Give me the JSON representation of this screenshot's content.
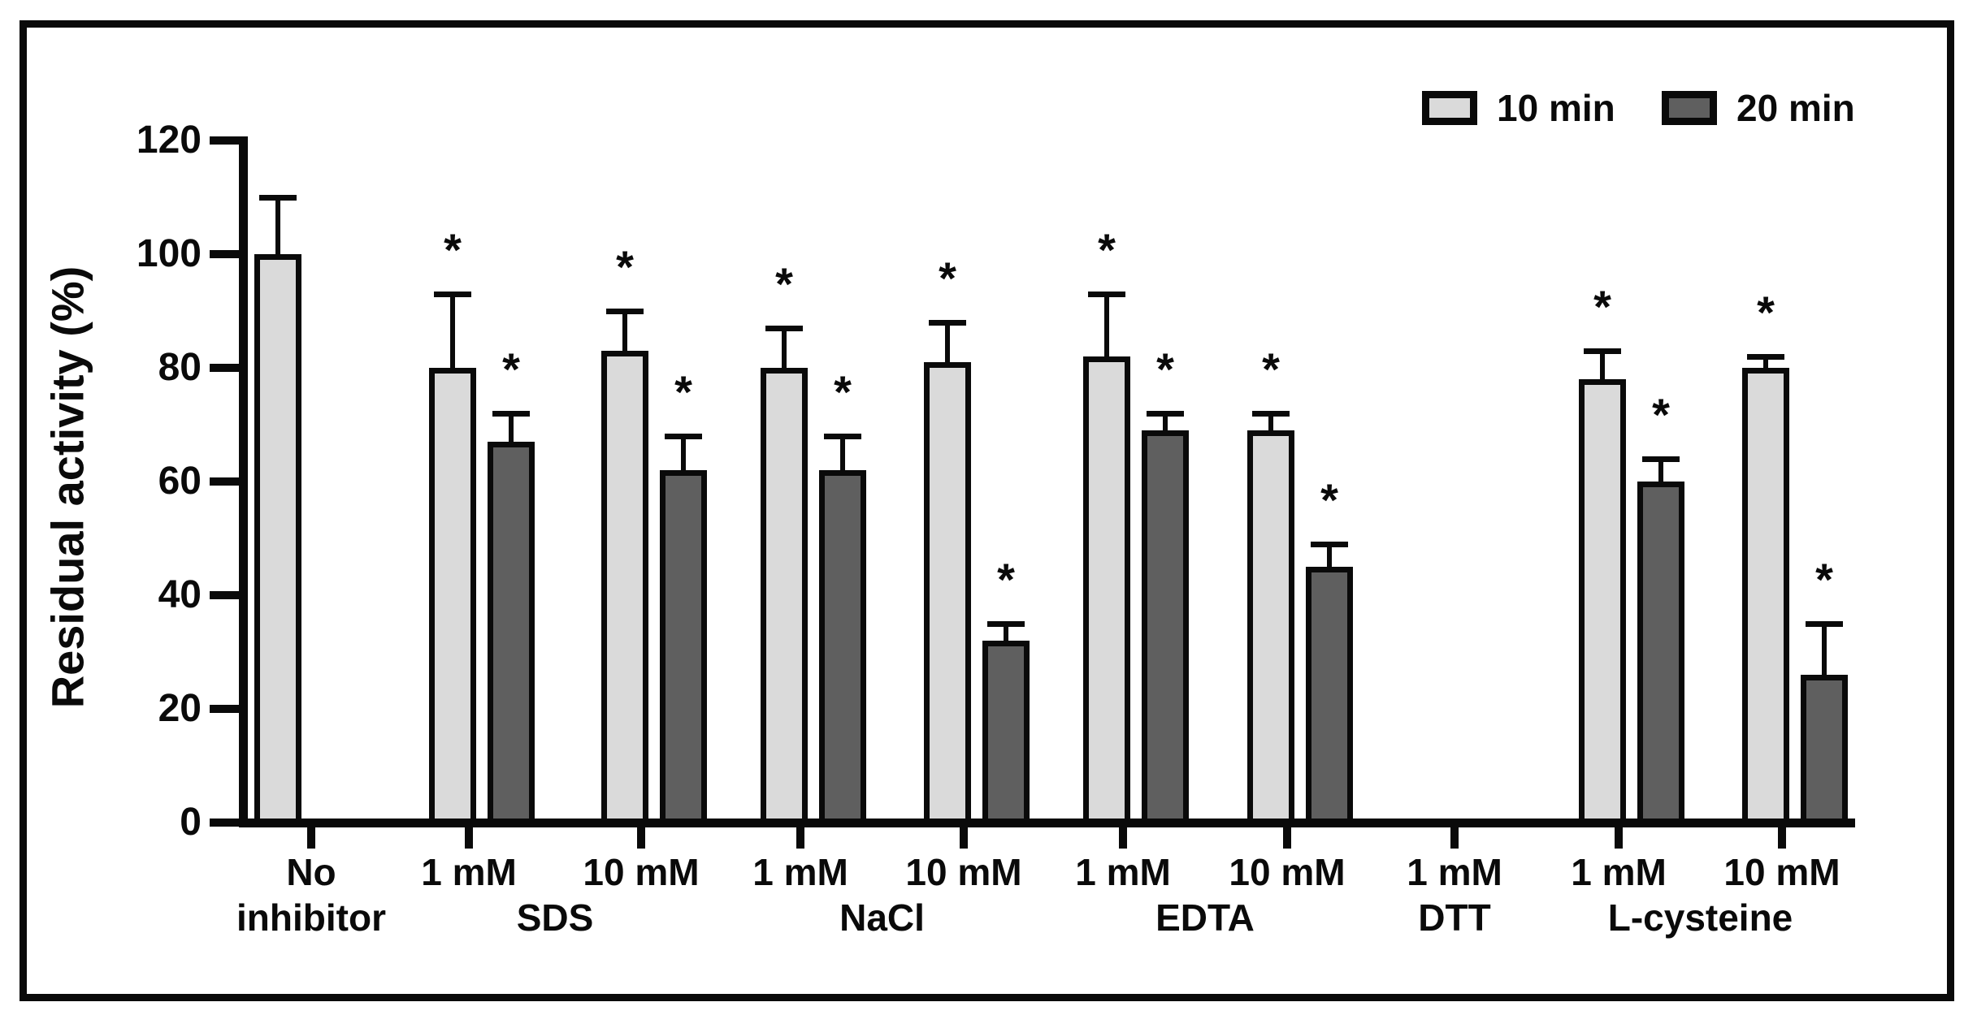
{
  "chart_data": {
    "type": "bar",
    "title": "",
    "ylabel": "Residual activity (%)",
    "xlabel": "",
    "ylim": [
      0,
      120
    ],
    "ytick_labels": [
      "0",
      "20",
      "40",
      "60",
      "80",
      "100",
      "120"
    ],
    "grid": false,
    "legend_position": "top-right",
    "legend": [
      {
        "label": "10 min",
        "color": "#dadada"
      },
      {
        "label": "20 min",
        "color": "#5f5f5f"
      }
    ],
    "series_names": [
      "10 min",
      "20 min"
    ],
    "significance_marker": "*",
    "sections": [
      {
        "chemical": "",
        "groups": [
          {
            "tick_label": "No",
            "tick_label_line2": "inhibitor",
            "control": true,
            "bars": [
              {
                "series": "10 min",
                "value": 100,
                "err": 10,
                "starred": false
              }
            ]
          }
        ]
      },
      {
        "chemical": "SDS",
        "groups": [
          {
            "tick_label": "1 mM",
            "bars": [
              {
                "series": "10 min",
                "value": 80,
                "err": 13,
                "starred": true
              },
              {
                "series": "20 min",
                "value": 67,
                "err": 5,
                "starred": true
              }
            ]
          },
          {
            "tick_label": "10 mM",
            "bars": [
              {
                "series": "10 min",
                "value": 83,
                "err": 7,
                "starred": true
              },
              {
                "series": "20 min",
                "value": 62,
                "err": 6,
                "starred": true
              }
            ]
          }
        ]
      },
      {
        "chemical": "NaCl",
        "groups": [
          {
            "tick_label": "1 mM",
            "bars": [
              {
                "series": "10 min",
                "value": 80,
                "err": 7,
                "starred": true
              },
              {
                "series": "20 min",
                "value": 62,
                "err": 6,
                "starred": true
              }
            ]
          },
          {
            "tick_label": "10 mM",
            "bars": [
              {
                "series": "10 min",
                "value": 81,
                "err": 7,
                "starred": true
              },
              {
                "series": "20 min",
                "value": 32,
                "err": 3,
                "starred": true
              }
            ]
          }
        ]
      },
      {
        "chemical": "EDTA",
        "groups": [
          {
            "tick_label": "1 mM",
            "bars": [
              {
                "series": "10 min",
                "value": 82,
                "err": 11,
                "starred": true
              },
              {
                "series": "20 min",
                "value": 69,
                "err": 3,
                "starred": true
              }
            ]
          },
          {
            "tick_label": "10 mM",
            "bars": [
              {
                "series": "10 min",
                "value": 69,
                "err": 3,
                "starred": true
              },
              {
                "series": "20 min",
                "value": 45,
                "err": 4,
                "starred": true
              }
            ]
          }
        ]
      },
      {
        "chemical": "DTT",
        "groups": [
          {
            "tick_label": "1 mM",
            "bars": []
          }
        ]
      },
      {
        "chemical": "L-cysteine",
        "groups": [
          {
            "tick_label": "1 mM",
            "bars": [
              {
                "series": "10 min",
                "value": 78,
                "err": 5,
                "starred": true
              },
              {
                "series": "20 min",
                "value": 60,
                "err": 4,
                "starred": true
              }
            ]
          },
          {
            "tick_label": "10 mM",
            "bars": [
              {
                "series": "10 min",
                "value": 80,
                "err": 2,
                "starred": true
              },
              {
                "series": "20 min",
                "value": 26,
                "err": 9,
                "starred": true
              }
            ]
          }
        ]
      }
    ],
    "colors": {
      "series_10min_fill": "#dadada",
      "series_20min_fill": "#5f5f5f",
      "axis": "#0a0a0a",
      "background": "#ffffff"
    }
  }
}
